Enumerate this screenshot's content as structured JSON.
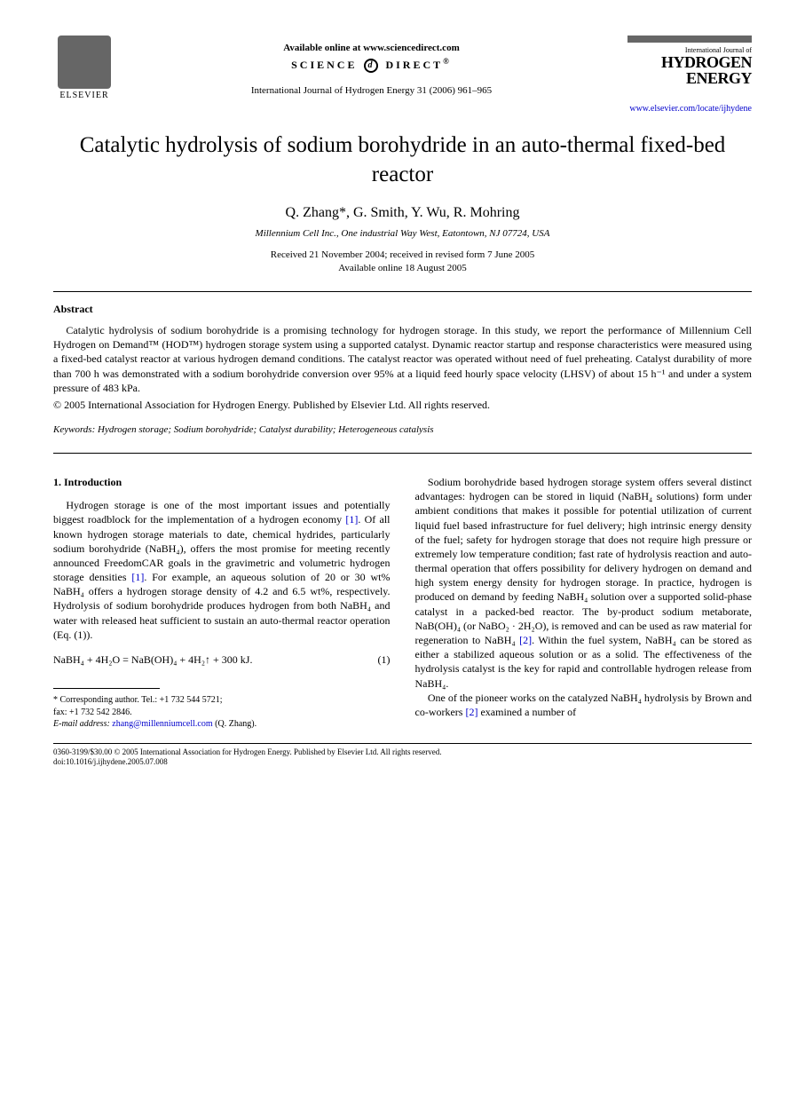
{
  "header": {
    "elsevier": "ELSEVIER",
    "available": "Available online at www.sciencedirect.com",
    "sciencedirect": "SCIENCE",
    "sciencedirect2": "DIRECT",
    "journal_ref": "International Journal of Hydrogen Energy 31 (2006) 961–965",
    "journal_sub": "International Journal of",
    "journal_name1": "HYDROGEN",
    "journal_name2": "ENERGY",
    "journal_url": "www.elsevier.com/locate/ijhydene"
  },
  "title": "Catalytic hydrolysis of sodium borohydride in an auto-thermal fixed-bed reactor",
  "authors": "Q. Zhang*, G. Smith, Y. Wu, R. Mohring",
  "affiliation": "Millennium Cell Inc., One industrial Way West, Eatontown, NJ 07724, USA",
  "dates1": "Received 21 November 2004; received in revised form 7 June 2005",
  "dates2": "Available online 18 August 2005",
  "abstract": {
    "heading": "Abstract",
    "text": "Catalytic hydrolysis of sodium borohydride is a promising technology for hydrogen storage. In this study, we report the performance of Millennium Cell Hydrogen on Demand™ (HOD™) hydrogen storage system using a supported catalyst. Dynamic reactor startup and response characteristics were measured using a fixed-bed catalyst reactor at various hydrogen demand conditions. The catalyst reactor was operated without need of fuel preheating. Catalyst durability of more than 700 h was demonstrated with a sodium borohydride conversion over 95% at a liquid feed hourly space velocity (LHSV) of about 15 h⁻¹ and under a system pressure of 483 kPa.",
    "copyright": "© 2005 International Association for Hydrogen Energy. Published by Elsevier Ltd. All rights reserved."
  },
  "keywords": {
    "label": "Keywords:",
    "text": " Hydrogen storage; Sodium borohydride; Catalyst durability; Heterogeneous catalysis"
  },
  "intro": {
    "heading": "1. Introduction",
    "p1a": "Hydrogen storage is one of the most important issues and potentially biggest roadblock for the implementation of a hydrogen economy ",
    "ref1": "[1]",
    "p1b": ". Of all known hydrogen storage materials to date, chemical hydrides, particularly sodium borohydride (NaBH₄), offers the most promise for meeting recently announced FreedomCAR goals in the gravimetric and volumetric hydrogen storage densities ",
    "ref1b": "[1]",
    "p1c": ". For example, an aqueous solution of 20 or 30 wt% NaBH₄ offers a hydrogen storage density of 4.2 and 6.5 wt%, respectively. Hydrolysis of sodium borohydride produces hydrogen from both NaBH₄ and water with released heat sufficient to sustain an auto-thermal reactor operation (Eq. (1)).",
    "eq": "NaBH₄ + 4H₂O = NaB(OH)₄ + 4H₂↑ + 300 kJ.",
    "eqnum": "(1)"
  },
  "col2": {
    "p1a": "Sodium borohydride based hydrogen storage system offers several distinct advantages: hydrogen can be stored in liquid (NaBH₄ solutions) form under ambient conditions that makes it possible for potential utilization of current liquid fuel based infrastructure for fuel delivery; high intrinsic energy density of the fuel; safety for hydrogen storage that does not require high pressure or extremely low temperature condition; fast rate of hydrolysis reaction and auto-thermal operation that offers possibility for delivery hydrogen on demand and high system energy density for hydrogen storage. In practice, hydrogen is produced on demand by feeding NaBH₄ solution over a supported solid-phase catalyst in a packed-bed reactor. The by-product sodium metaborate, NaB(OH)₄ (or NaBO₂ · 2H₂O), is removed and can be used as raw material for regeneration to NaBH₄ ",
    "ref2": "[2]",
    "p1b": ". Within the fuel system, NaBH₄ can be stored as either a stabilized aqueous solution or as a solid. The effectiveness of the hydrolysis catalyst is the key for rapid and controllable hydrogen release from NaBH₄.",
    "p2a": "One of the pioneer works on the catalyzed NaBH₄ hydrolysis by Brown and co-workers ",
    "ref2b": "[2]",
    "p2b": " examined a number of"
  },
  "footnote": {
    "corr": "* Corresponding author. Tel.: +1 732 544 5721;",
    "fax": "fax: +1 732 542 2846.",
    "email_label": "E-mail address:",
    "email": "zhang@millenniumcell.com",
    "email_suffix": " (Q. Zhang)."
  },
  "bottom": {
    "line1": "0360-3199/$30.00 © 2005 International Association for Hydrogen Energy. Published by Elsevier Ltd. All rights reserved.",
    "line2": "doi:10.1016/j.ijhydene.2005.07.008"
  }
}
